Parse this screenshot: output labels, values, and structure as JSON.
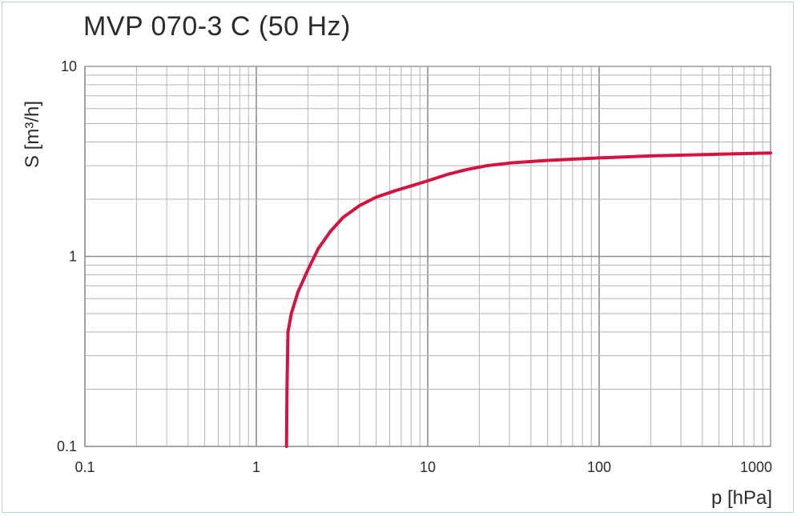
{
  "chart_data": {
    "type": "line",
    "title": "MVP 070-3 C (50 Hz)",
    "xlabel": "p  [hPa]",
    "ylabel": "S  [m³/h]",
    "xscale": "log",
    "yscale": "log",
    "xlim": [
      0.1,
      1000
    ],
    "ylim": [
      0.1,
      10
    ],
    "xticks": [
      "0.1",
      "1",
      "10",
      "100",
      "1000"
    ],
    "yticks": [
      "0.1",
      "1",
      "10"
    ],
    "grid": true,
    "line_color": "#d4143f",
    "series": [
      {
        "x": [
          1.5,
          1.51,
          1.53,
          1.6,
          1.75,
          2.0,
          2.3,
          2.7,
          3.2,
          4.0,
          5.0,
          6.5,
          8.0,
          10,
          13,
          17,
          22,
          30,
          50,
          100,
          200,
          500,
          1000
        ],
        "y": [
          0.1,
          0.2,
          0.4,
          0.5,
          0.65,
          0.85,
          1.1,
          1.35,
          1.6,
          1.85,
          2.05,
          2.22,
          2.35,
          2.5,
          2.7,
          2.87,
          3.0,
          3.1,
          3.2,
          3.3,
          3.38,
          3.45,
          3.5
        ]
      }
    ]
  }
}
